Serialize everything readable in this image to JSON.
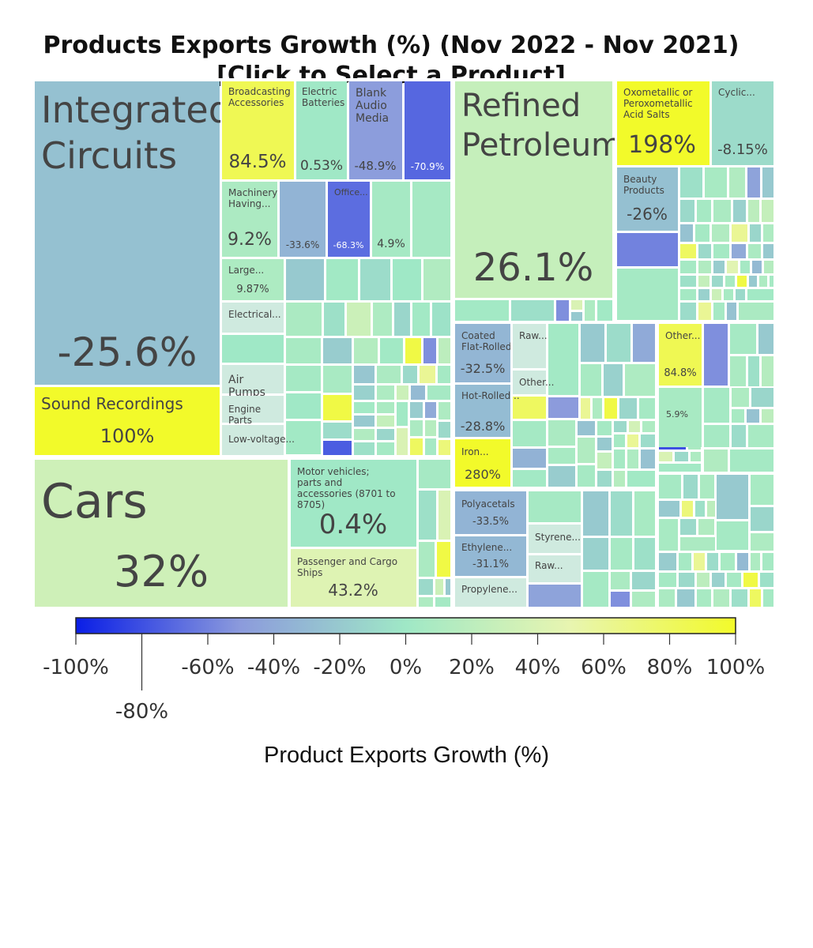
{
  "title_line1": "Products Exports Growth (%) (Nov 2022 - Nov 2021)",
  "title_line2": "[Click to Select a Product]",
  "chart_data": {
    "type": "treemap",
    "title": "Products Exports Growth (%) (Nov 2022 - Nov 2021)",
    "subtitle": "[Click to Select a Product]",
    "value_unit": "%",
    "items": [
      {
        "label": "Integrated Circuits",
        "value": "-25.6%",
        "growth": -25.6
      },
      {
        "label": "Sound Recordings",
        "value": "100%",
        "growth": 100
      },
      {
        "label": "Broadcasting Accessories",
        "value": "84.5%",
        "growth": 84.5
      },
      {
        "label": "Electric Batteries",
        "value": "0.53%",
        "growth": 0.53
      },
      {
        "label": "Blank Audio Media",
        "value": "-48.9%",
        "growth": -48.9
      },
      {
        "label": "",
        "value": "-70.9%",
        "growth": -70.9
      },
      {
        "label": "Machinery Having...",
        "value": "9.2%",
        "growth": 9.2
      },
      {
        "label": "",
        "value": "-33.6%",
        "growth": -33.6
      },
      {
        "label": "Office...",
        "value": "-68.3%",
        "growth": -68.3
      },
      {
        "label": "",
        "value": "4.9%",
        "growth": 4.9
      },
      {
        "label": "Large...",
        "value": "9.87%",
        "growth": 9.87
      },
      {
        "label": "Electrical...",
        "value": "",
        "growth": null
      },
      {
        "label": "Air Pumps",
        "value": "",
        "growth": null
      },
      {
        "label": "Engine Parts",
        "value": "",
        "growth": null
      },
      {
        "label": "Low-voltage...",
        "value": "",
        "growth": null
      },
      {
        "label": "Refined Petroleum",
        "value": "26.1%",
        "growth": 26.1
      },
      {
        "label": "Oxometallic or Peroxometallic Acid Salts",
        "value": "198%",
        "growth": 198
      },
      {
        "label": "Cyclic...",
        "value": "-8.15%",
        "growth": -8.15
      },
      {
        "label": "Beauty Products",
        "value": "-26%",
        "growth": -26
      },
      {
        "label": "Coated Flat-Rolled...",
        "value": "-32.5%",
        "growth": -32.5
      },
      {
        "label": "Raw...",
        "value": "",
        "growth": null
      },
      {
        "label": "Other...",
        "value": "",
        "growth": null
      },
      {
        "label": "Hot-Rolled...",
        "value": "-28.8%",
        "growth": -28.8
      },
      {
        "label": "Iron...",
        "value": "280%",
        "growth": 280
      },
      {
        "label": "Other...",
        "value": "84.8%",
        "growth": 84.8
      },
      {
        "label": "",
        "value": "5.9%",
        "growth": 5.9
      },
      {
        "label": "Cars",
        "value": "32%",
        "growth": 32
      },
      {
        "label": "Motor vehicles; parts and accessories (8701 to 8705)",
        "value": "0.4%",
        "growth": 0.4
      },
      {
        "label": "Passenger and Cargo Ships",
        "value": "43.2%",
        "growth": 43.2
      },
      {
        "label": "Polyacetals",
        "value": "-33.5%",
        "growth": -33.5
      },
      {
        "label": "Ethylene...",
        "value": "-31.1%",
        "growth": -31.1
      },
      {
        "label": "Propylene...",
        "value": "",
        "growth": null
      },
      {
        "label": "Styrene...",
        "value": "",
        "growth": null
      },
      {
        "label": "Raw...",
        "value": "",
        "growth": null
      }
    ],
    "colorbar": {
      "title": "Product Exports Growth (%)",
      "range": [
        -100,
        100
      ],
      "ticks": [
        "-100%",
        "-80%",
        "-60%",
        "-40%",
        "-20%",
        "0%",
        "20%",
        "40%",
        "60%",
        "80%",
        "100%"
      ],
      "colorscale": [
        "#0a1ee6",
        "#8c9bdc",
        "#9fe8c6",
        "#e8f5b0",
        "#f2fa2a"
      ]
    }
  }
}
